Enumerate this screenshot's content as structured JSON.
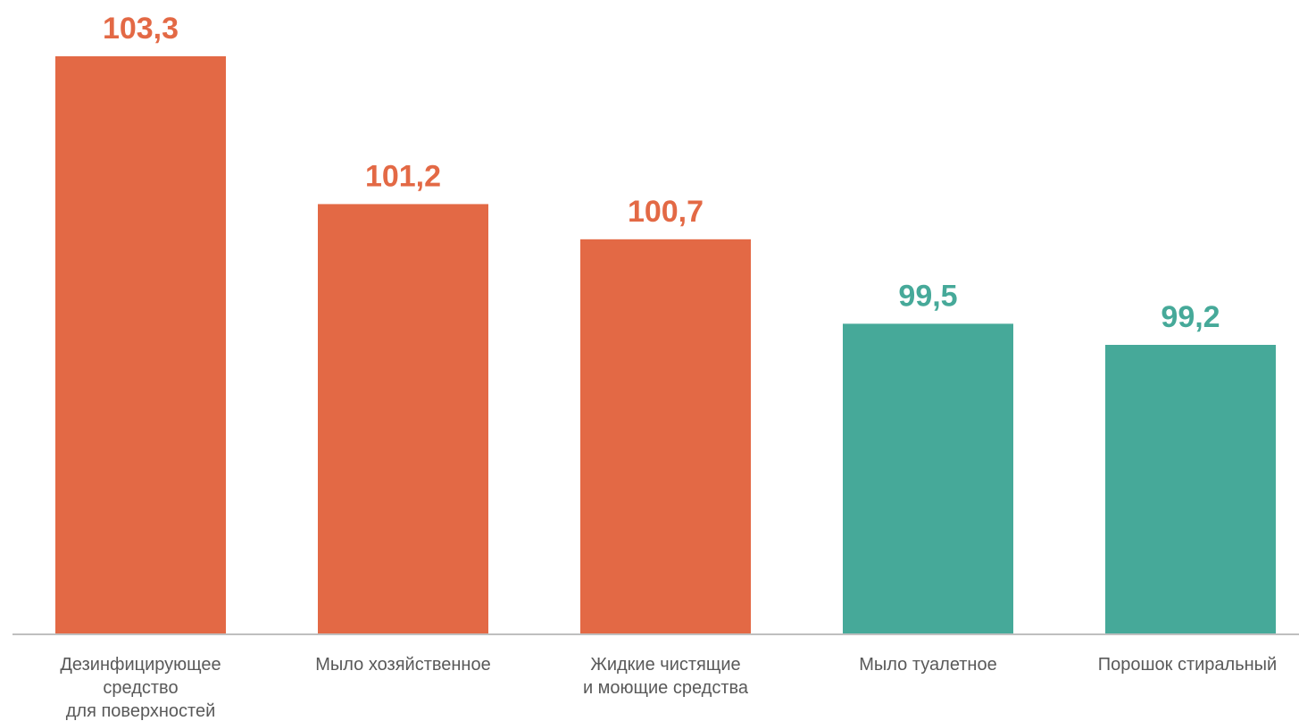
{
  "chart_data": {
    "type": "bar",
    "categories": [
      [
        "Дезинфицирующее",
        "средство",
        "для поверхностей"
      ],
      [
        "Мыло хозяйственное"
      ],
      [
        "Жидкие чистящие",
        "и моющие средства"
      ],
      [
        "Мыло туалетное"
      ],
      [
        "Порошок стиральный"
      ]
    ],
    "values": [
      103.3,
      101.2,
      100.7,
      99.5,
      99.2
    ],
    "value_labels": [
      "103,3",
      "101,2",
      "100,7",
      "99,5",
      "99,2"
    ],
    "baseline": 95.1,
    "ylim": [
      95.1,
      103.3
    ],
    "grid": false,
    "colors": {
      "above_100": "#E36945",
      "below_100": "#46A999",
      "axis": "#BFBFBF",
      "category_text": "#595959"
    },
    "bar_colors": [
      "#E36945",
      "#E36945",
      "#E36945",
      "#46A999",
      "#46A999"
    ]
  }
}
